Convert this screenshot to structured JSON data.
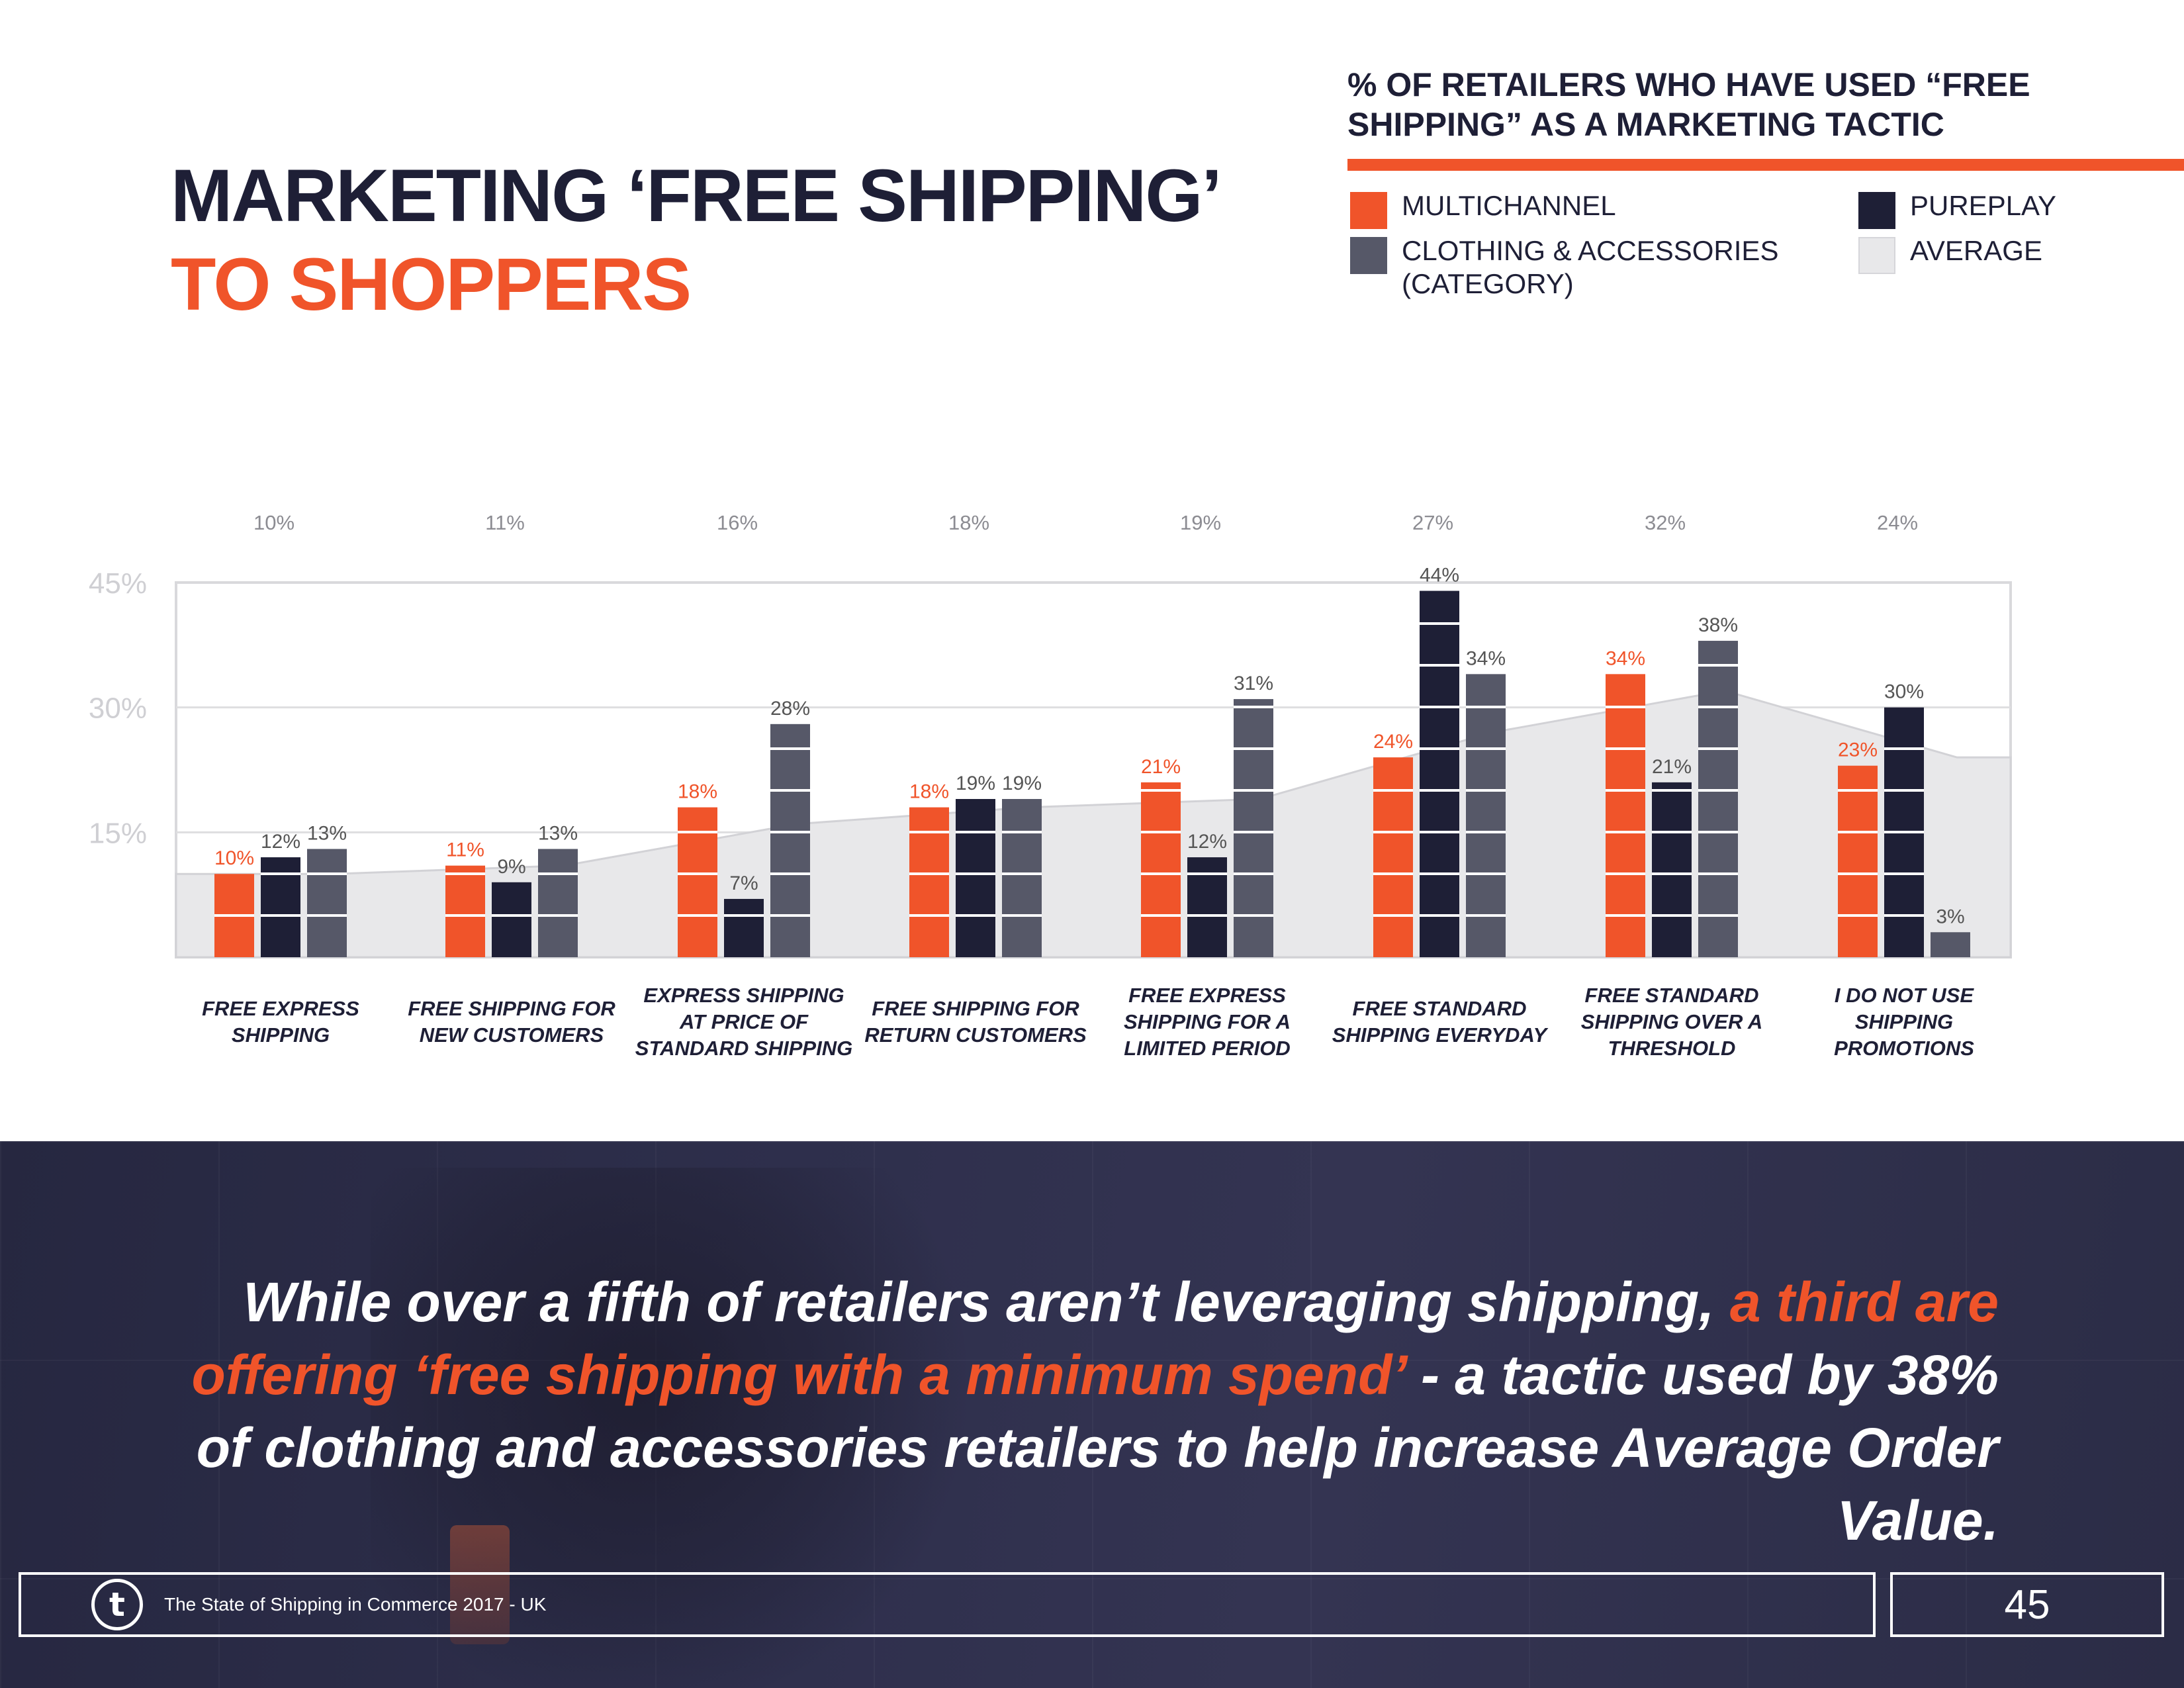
{
  "title": {
    "line1": "MARKETING ‘FREE SHIPPING’",
    "line2": "TO SHOPPERS"
  },
  "legend": {
    "title": "% OF RETAILERS WHO HAVE USED “FREE SHIPPING” AS A MARKETING TACTIC",
    "items": [
      {
        "label": "MULTICHANNEL",
        "color": "#f0542a"
      },
      {
        "label": "PUREPLAY",
        "color": "#1e1f36"
      },
      {
        "label": "CLOTHING & ACCESSORIES (CATEGORY)",
        "color": "#565868"
      },
      {
        "label": "AVERAGE",
        "color": "#e8e8ea"
      }
    ]
  },
  "chart_data": {
    "type": "bar",
    "title": "% OF RETAILERS WHO HAVE USED “FREE SHIPPING” AS A MARKETING TACTIC",
    "ylim": [
      0,
      45
    ],
    "yticks": [
      "45%",
      "30%",
      "15%"
    ],
    "ytick_values": [
      45,
      30,
      15
    ],
    "grid": true,
    "categories": [
      [
        "FREE EXPRESS",
        "SHIPPING"
      ],
      [
        "FREE SHIPPING FOR",
        "NEW CUSTOMERS"
      ],
      [
        "EXPRESS SHIPPING",
        "AT PRICE OF",
        "STANDARD SHIPPING"
      ],
      [
        "FREE SHIPPING FOR",
        "RETURN CUSTOMERS"
      ],
      [
        "FREE EXPRESS",
        "SHIPPING FOR A",
        "LIMITED PERIOD"
      ],
      [
        "FREE STANDARD",
        "SHIPPING EVERYDAY"
      ],
      [
        "FREE STANDARD",
        "SHIPPING OVER A",
        "THRESHOLD"
      ],
      [
        "I DO NOT USE",
        "SHIPPING",
        "PROMOTIONS"
      ]
    ],
    "series": [
      {
        "name": "MULTICHANNEL",
        "color": "#f0542a",
        "label_color": "#f0542a",
        "values": [
          10,
          11,
          18,
          18,
          21,
          24,
          34,
          23
        ],
        "labels": [
          "10%",
          "11%",
          "18%",
          "18%",
          "21%",
          "24%",
          "34%",
          "23%"
        ]
      },
      {
        "name": "PUREPLAY",
        "color": "#1e1f36",
        "label_color": "#555555",
        "values": [
          12,
          9,
          7,
          19,
          12,
          44,
          21,
          30
        ],
        "labels": [
          "12%",
          "9%",
          "7%",
          "19%",
          "12%",
          "44%",
          "21%",
          "30%"
        ]
      },
      {
        "name": "CLOTHING & ACCESSORIES (CATEGORY)",
        "color": "#565868",
        "label_color": "#555555",
        "values": [
          13,
          13,
          28,
          19,
          31,
          34,
          38,
          3
        ],
        "labels": [
          "13%",
          "13%",
          "28%",
          "19%",
          "31%",
          "34%",
          "38%",
          "3%"
        ]
      }
    ],
    "average": {
      "name": "AVERAGE",
      "color": "#e8e8ea",
      "values": [
        10,
        11,
        16,
        18,
        19,
        27,
        32,
        24
      ],
      "labels": [
        "10%",
        "11%",
        "16%",
        "18%",
        "19%",
        "27%",
        "32%",
        "24%"
      ]
    }
  },
  "quote": {
    "part1": "While over a fifth of retailers aren’t leveraging shipping, ",
    "highlight": "a third are offering ‘free shipping with a minimum spend’",
    "part2": " - a tactic used by 38% of clothing and accessories retailers to help increase  Average Order Value."
  },
  "footer": {
    "logo": "t",
    "text": "The State of Shipping in Commerce 2017 - UK",
    "page": "45"
  }
}
